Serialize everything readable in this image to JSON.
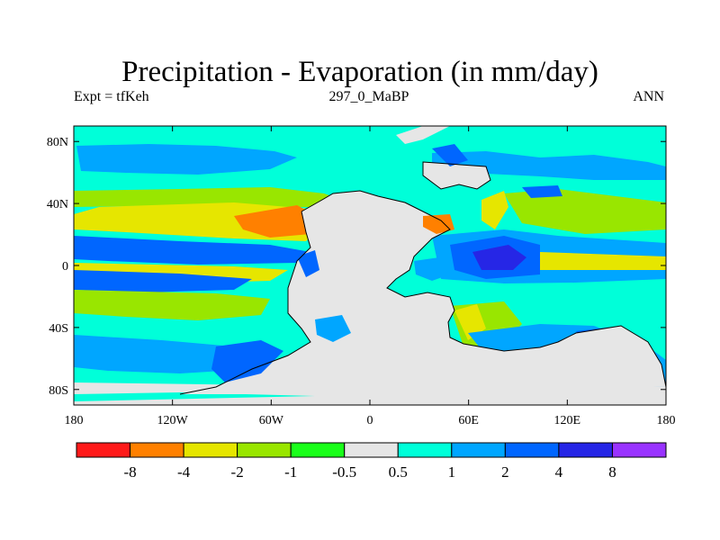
{
  "chart_data": {
    "type": "heatmap",
    "title": "Precipitation - Evaporation (in mm/day)",
    "subtitle_left": "Expt = tfKeh",
    "subtitle_center": "297_0_MaBP",
    "subtitle_right": "ANN",
    "x_ticks": [
      "180",
      "120W",
      "60W",
      "0",
      "60E",
      "120E",
      "180"
    ],
    "y_ticks": [
      "80N",
      "40N",
      "0",
      "40S",
      "80S"
    ],
    "xlim": [
      -180,
      180
    ],
    "ylim": [
      -90,
      90
    ],
    "colorbar": {
      "labels": [
        "-8",
        "-4",
        "-2",
        "-1",
        "-0.5",
        "0.5",
        "1",
        "2",
        "4",
        "8"
      ],
      "colors": [
        "#ff1a1a",
        "#ff8000",
        "#e6e600",
        "#99e600",
        "#1aff1a",
        "#e6e6e6",
        "#00ffd9",
        "#00a6ff",
        "#0066ff",
        "#2626e6",
        "#9933ff"
      ]
    }
  }
}
